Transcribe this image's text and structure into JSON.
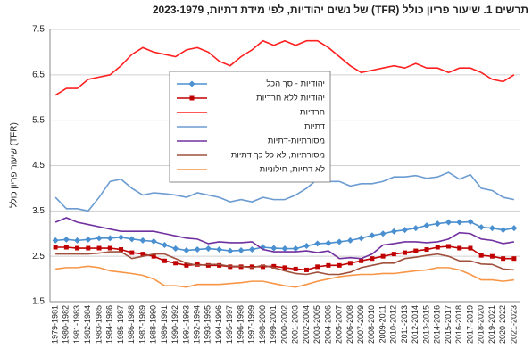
{
  "chart_data": {
    "type": "line",
    "title": "תרשים 1. שיעור פריון כולל (TFR) של נשים יהודיות, לפי מידת דתיות, 2023-1979",
    "y_label": "שיעור פריון כולל (TFR)",
    "categories": [
      "1979-1981",
      "1980-1982",
      "1981-1983",
      "1982-1984",
      "1983-1985",
      "1984-1986",
      "1985-1987",
      "1986-1988",
      "1987-1989",
      "1988-1990",
      "1989-1991",
      "1990-1992",
      "1991-1993",
      "1992-1994",
      "1993-1995",
      "1994-1996",
      "1995-1997",
      "1996-1998",
      "1997-1999",
      "1998-2000",
      "1999-2001",
      "2000-2002",
      "2001-2003",
      "2002-2004",
      "2003-2005",
      "2004-2006",
      "2005-2007",
      "2006-2008",
      "2007-2009",
      "2008-2010",
      "2009-2011",
      "2010-2012",
      "2011-2013",
      "2012-2014",
      "2013-2015",
      "2014-2016",
      "2015-2017",
      "2016-2018",
      "2017-2019",
      "2018-2020",
      "2019-2021",
      "2020-2022",
      "2021-2023"
    ],
    "series": [
      {
        "name": "יהודיות - סך הכל",
        "color": "#4a90d0",
        "marker": "diamond",
        "values": [
          2.85,
          2.87,
          2.85,
          2.87,
          2.9,
          2.9,
          2.92,
          2.88,
          2.85,
          2.83,
          2.75,
          2.67,
          2.63,
          2.65,
          2.67,
          2.65,
          2.62,
          2.63,
          2.65,
          2.7,
          2.68,
          2.67,
          2.67,
          2.73,
          2.78,
          2.79,
          2.82,
          2.85,
          2.9,
          2.96,
          3.0,
          3.05,
          3.08,
          3.12,
          3.18,
          3.22,
          3.25,
          3.25,
          3.26,
          3.14,
          3.12,
          3.08,
          3.12
        ]
      },
      {
        "name": "יהודיות ללא חרדיות",
        "color": "#c00000",
        "marker": "square",
        "values": [
          2.7,
          2.7,
          2.68,
          2.68,
          2.68,
          2.68,
          2.65,
          2.58,
          2.55,
          2.5,
          2.4,
          2.35,
          2.3,
          2.32,
          2.3,
          2.3,
          2.27,
          2.27,
          2.27,
          2.27,
          2.28,
          2.25,
          2.22,
          2.2,
          2.27,
          2.3,
          2.3,
          2.35,
          2.4,
          2.45,
          2.5,
          2.55,
          2.58,
          2.62,
          2.65,
          2.7,
          2.72,
          2.68,
          2.68,
          2.52,
          2.5,
          2.45,
          2.45
        ]
      },
      {
        "name": "חרדיות",
        "color": "#ff2020",
        "values": [
          6.05,
          6.2,
          6.2,
          6.4,
          6.45,
          6.5,
          6.7,
          6.95,
          7.1,
          7.0,
          6.95,
          6.9,
          7.05,
          7.1,
          7.0,
          6.8,
          6.7,
          6.9,
          7.05,
          7.25,
          7.15,
          7.25,
          7.15,
          7.25,
          7.25,
          7.1,
          6.9,
          6.7,
          6.55,
          6.6,
          6.65,
          6.7,
          6.65,
          6.75,
          6.65,
          6.65,
          6.55,
          6.65,
          6.65,
          6.55,
          6.4,
          6.35,
          6.5
        ]
      },
      {
        "name": "דתיות",
        "color": "#6b9bd1",
        "values": [
          3.8,
          3.55,
          3.55,
          3.5,
          3.8,
          4.15,
          4.2,
          4.0,
          3.85,
          3.9,
          3.88,
          3.85,
          3.8,
          3.9,
          3.85,
          3.8,
          3.7,
          3.75,
          3.7,
          3.8,
          3.75,
          3.75,
          3.85,
          4.0,
          4.2,
          4.15,
          4.15,
          4.05,
          4.1,
          4.1,
          4.15,
          4.25,
          4.25,
          4.28,
          4.22,
          4.25,
          4.35,
          4.2,
          4.3,
          4.0,
          3.95,
          3.8,
          3.75
        ]
      },
      {
        "name": "מסורתיות-דתיות",
        "color": "#7030a0",
        "values": [
          3.25,
          3.35,
          3.25,
          3.2,
          3.15,
          3.1,
          3.05,
          3.05,
          3.05,
          3.05,
          3.0,
          2.95,
          2.9,
          2.88,
          2.78,
          2.82,
          2.8,
          2.8,
          2.82,
          2.65,
          2.6,
          2.6,
          2.6,
          2.62,
          2.58,
          2.62,
          2.45,
          2.47,
          2.45,
          2.55,
          2.75,
          2.78,
          2.82,
          2.82,
          2.8,
          2.82,
          2.88,
          3.02,
          3.0,
          2.88,
          2.85,
          2.78,
          2.82
        ]
      },
      {
        "name": "מסורתיות, לא כל כך דתיות",
        "color": "#a0503c",
        "values": [
          2.55,
          2.55,
          2.55,
          2.55,
          2.57,
          2.6,
          2.6,
          2.45,
          2.5,
          2.55,
          2.55,
          2.45,
          2.35,
          2.3,
          2.32,
          2.32,
          2.28,
          2.28,
          2.25,
          2.3,
          2.25,
          2.18,
          2.12,
          2.1,
          2.15,
          2.1,
          2.1,
          2.15,
          2.25,
          2.3,
          2.35,
          2.35,
          2.45,
          2.48,
          2.52,
          2.55,
          2.5,
          2.4,
          2.4,
          2.33,
          2.32,
          2.22,
          2.2
        ]
      },
      {
        "name": "לא דתיות, חילוניות",
        "color": "#f79646",
        "values": [
          2.22,
          2.25,
          2.25,
          2.28,
          2.25,
          2.18,
          2.15,
          2.12,
          2.08,
          2.0,
          1.85,
          1.85,
          1.82,
          1.88,
          1.88,
          1.88,
          1.9,
          1.92,
          1.95,
          1.95,
          1.9,
          1.85,
          1.82,
          1.88,
          1.95,
          2.0,
          2.05,
          2.08,
          2.1,
          2.1,
          2.12,
          2.12,
          2.15,
          2.18,
          2.2,
          2.25,
          2.25,
          2.2,
          2.1,
          1.98,
          1.98,
          1.95,
          1.98
        ]
      }
    ],
    "ylim": [
      1.5,
      7.5
    ],
    "yticks": [
      1.5,
      2.5,
      3.5,
      4.5,
      5.5,
      6.5,
      7.5
    ],
    "grid": true,
    "legend": "top"
  }
}
